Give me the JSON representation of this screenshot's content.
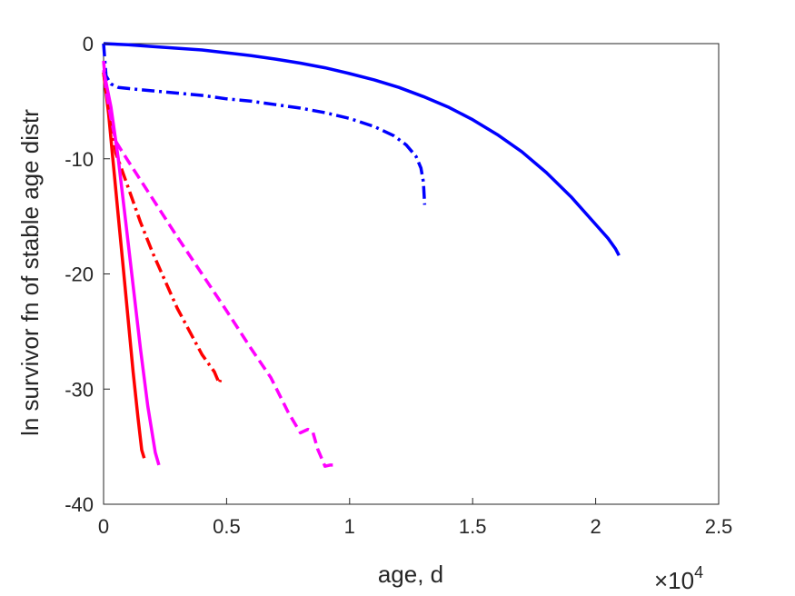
{
  "chart_data": {
    "type": "line",
    "title": "",
    "xlabel": "age, d",
    "ylabel": "ln survivor fn of stable age distr",
    "x_exponent_label": {
      "base": "×10",
      "exp": "4"
    },
    "xlim": [
      0,
      25000
    ],
    "ylim": [
      -40,
      0
    ],
    "grid": false,
    "legend": "none",
    "x_ticks": [
      0,
      5000,
      10000,
      15000,
      20000,
      25000
    ],
    "x_tick_labels": [
      "0",
      "0.5",
      "1",
      "1.5",
      "2",
      "2.5"
    ],
    "y_ticks": [
      -40,
      -30,
      -20,
      -10,
      0
    ],
    "y_tick_labels": [
      "-40",
      "-30",
      "-20",
      "-10",
      "0"
    ],
    "series": [
      {
        "color": "#0000FF",
        "style": "solid",
        "x": [
          0,
          1000,
          2000,
          3000,
          4000,
          5000,
          6000,
          7000,
          8000,
          9000,
          10000,
          11000,
          12000,
          13000,
          14000,
          15000,
          16000,
          17000,
          18000,
          19000,
          20000,
          20500,
          20800,
          20950
        ],
        "y": [
          0,
          -0.1,
          -0.25,
          -0.4,
          -0.55,
          -0.8,
          -1.05,
          -1.35,
          -1.7,
          -2.1,
          -2.6,
          -3.15,
          -3.8,
          -4.6,
          -5.5,
          -6.6,
          -7.9,
          -9.4,
          -11.2,
          -13.3,
          -15.7,
          -16.9,
          -17.8,
          -18.4
        ]
      },
      {
        "color": "#0000FF",
        "style": "dashdot",
        "x": [
          0,
          100,
          300,
          600,
          1000,
          2000,
          3000,
          4000,
          5000,
          6000,
          7000,
          8000,
          9000,
          10000,
          11000,
          11800,
          12300,
          12700,
          12900,
          13000,
          13050
        ],
        "y": [
          0,
          -2.8,
          -3.5,
          -3.8,
          -3.9,
          -4.1,
          -4.3,
          -4.5,
          -4.8,
          -5.0,
          -5.3,
          -5.6,
          -6.0,
          -6.5,
          -7.2,
          -8.0,
          -8.8,
          -9.8,
          -10.8,
          -12.0,
          -14.0
        ]
      },
      {
        "color": "#FF0000",
        "style": "solid",
        "x": [
          0,
          200,
          400,
          600,
          800,
          1000,
          1200,
          1400,
          1550,
          1650
        ],
        "y": [
          -2.5,
          -6.0,
          -10.5,
          -15.0,
          -19.5,
          -24.0,
          -28.5,
          -32.5,
          -35.3,
          -36.0
        ]
      },
      {
        "color": "#FF0000",
        "style": "dashdot",
        "x": [
          0,
          200,
          500,
          1000,
          1500,
          2000,
          2500,
          3000,
          3500,
          4000,
          4500,
          4700,
          4750
        ],
        "y": [
          -2.5,
          -5.5,
          -9.5,
          -12.5,
          -15.5,
          -18.2,
          -20.6,
          -23.0,
          -25.0,
          -27.0,
          -28.5,
          -29.5,
          -29.2
        ]
      },
      {
        "color": "#FF00FF",
        "style": "solid",
        "x": [
          0,
          300,
          600,
          900,
          1200,
          1500,
          1800,
          2100,
          2250
        ],
        "y": [
          -2.3,
          -5.5,
          -10.0,
          -15.5,
          -21.0,
          -26.5,
          -31.5,
          -35.5,
          -36.6
        ]
      },
      {
        "color": "#FF00FF",
        "style": "dashed",
        "x": [
          0,
          100,
          300,
          500,
          700,
          1000,
          2000,
          3000,
          4000,
          5000,
          6000,
          6800,
          7500,
          8000,
          8300,
          8500,
          8700,
          9000,
          9200,
          9500
        ],
        "y": [
          -1.5,
          -4.0,
          -6.5,
          -8.5,
          -9.2,
          -10.2,
          -13.5,
          -16.8,
          -20.0,
          -23.2,
          -26.5,
          -29.0,
          -32.0,
          -33.8,
          -33.5,
          -33.7,
          -35.2,
          -36.7,
          -36.6,
          -36.6
        ]
      }
    ]
  }
}
